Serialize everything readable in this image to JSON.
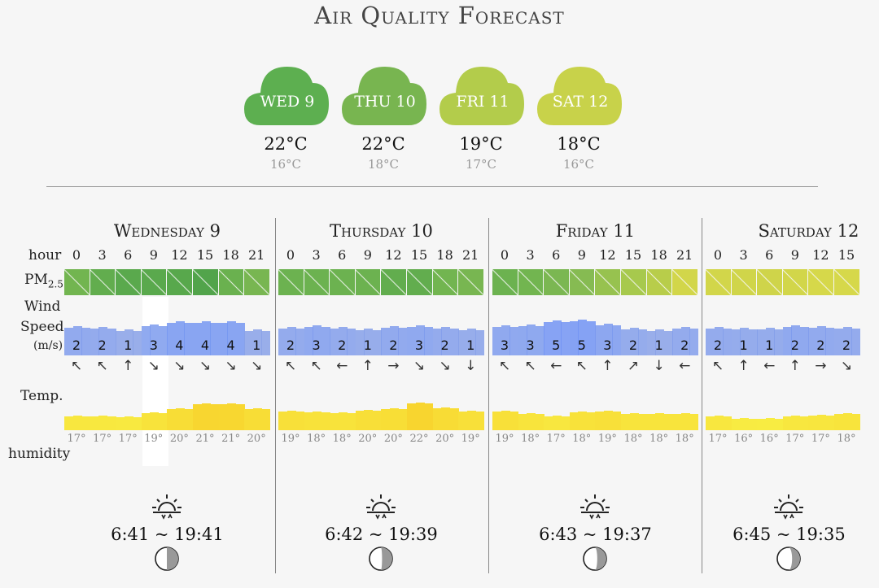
{
  "title": "Air Quality Forecast",
  "summary": [
    {
      "label": "WED 9",
      "max": "22°C",
      "min": "16°C",
      "color": "#5daf50"
    },
    {
      "label": "THU 10",
      "max": "22°C",
      "min": "18°C",
      "color": "#78b550"
    },
    {
      "label": "FRI 11",
      "max": "19°C",
      "min": "17°C",
      "color": "#b3cc4b"
    },
    {
      "label": "SAT 12",
      "max": "18°C",
      "min": "16°C",
      "color": "#c8d24a"
    }
  ],
  "row_labels": {
    "hour": "hour",
    "pm": "PM",
    "pm_sub": "2.5",
    "wind1": "Wind",
    "wind2": "Speed",
    "wind_unit": "(m/s)",
    "temp": "Temp.",
    "humidity": "humidity"
  },
  "days": [
    {
      "name": "Wednesday 9",
      "hours": [
        "0",
        "3",
        "6",
        "9",
        "12",
        "15",
        "18",
        "21"
      ],
      "pm_colors": [
        "#72b550",
        "#62ad4e",
        "#5aa94d",
        "#5aa94d",
        "#58a84c",
        "#52a44b",
        "#6ab14f",
        "#78b651"
      ],
      "wind_values": [
        "2",
        "2",
        "1",
        "3",
        "4",
        "4",
        "4",
        "1"
      ],
      "wind_dirs": [
        "↖",
        "↖",
        "↑",
        "↘",
        "↘",
        "↘",
        "↘",
        "↘"
      ],
      "wind_speed_levels": [
        0.55,
        0.5,
        0.35,
        0.62,
        0.8,
        0.82,
        0.8,
        0.35
      ],
      "temp_labels": [
        "17°",
        "17°",
        "17°",
        "19°",
        "20°",
        "21°",
        "21°",
        "20°"
      ],
      "temp_levels": [
        0.25,
        0.22,
        0.2,
        0.38,
        0.55,
        0.75,
        0.72,
        0.55
      ],
      "sunrise_sunset": "6:41 ~ 19:41",
      "moon_phase": 0.5
    },
    {
      "name": "Thursday 10",
      "hours": [
        "0",
        "3",
        "6",
        "9",
        "12",
        "15",
        "18",
        "21"
      ],
      "pm_colors": [
        "#6cb250",
        "#6cb250",
        "#6cb250",
        "#6cb250",
        "#62ad4e",
        "#62ad4e",
        "#72b550",
        "#78b651"
      ],
      "wind_values": [
        "2",
        "3",
        "2",
        "1",
        "2",
        "3",
        "2",
        "1"
      ],
      "wind_dirs": [
        "↖",
        "↖",
        "←",
        "↑",
        "→",
        "↘",
        "↘",
        "↓"
      ],
      "wind_speed_levels": [
        0.5,
        0.6,
        0.5,
        0.4,
        0.55,
        0.6,
        0.5,
        0.4
      ],
      "temp_labels": [
        "19°",
        "18°",
        "18°",
        "20°",
        "20°",
        "22°",
        "20°",
        "19°"
      ],
      "temp_levels": [
        0.45,
        0.4,
        0.38,
        0.48,
        0.52,
        0.78,
        0.58,
        0.45
      ],
      "sunrise_sunset": "6:42 ~ 19:39",
      "moon_phase": 0.55
    },
    {
      "name": "Friday 11",
      "hours": [
        "0",
        "3",
        "6",
        "9",
        "12",
        "15",
        "18",
        "21"
      ],
      "pm_colors": [
        "#6cb250",
        "#72b550",
        "#7bb752",
        "#86bb52",
        "#97c24f",
        "#a7c94d",
        "#b8cd4a",
        "#d2d64a"
      ],
      "wind_values": [
        "3",
        "3",
        "5",
        "5",
        "3",
        "2",
        "1",
        "2"
      ],
      "wind_dirs": [
        "↖",
        "↖",
        "←",
        "↖",
        "↑",
        "↗",
        "↓",
        "←"
      ],
      "wind_speed_levels": [
        0.6,
        0.62,
        0.88,
        0.92,
        0.7,
        0.45,
        0.35,
        0.5
      ],
      "temp_labels": [
        "19°",
        "18°",
        "17°",
        "18°",
        "19°",
        "18°",
        "18°",
        "18°"
      ],
      "temp_levels": [
        0.45,
        0.35,
        0.25,
        0.4,
        0.45,
        0.35,
        0.33,
        0.35
      ],
      "sunrise_sunset": "6:43 ~ 19:37",
      "moon_phase": 0.6
    },
    {
      "name": "Saturday 12",
      "hours": [
        "0",
        "3",
        "6",
        "9",
        "12",
        "15"
      ],
      "pm_colors": [
        "#d2d64a",
        "#d0d54a",
        "#cfd44a",
        "#d2d64a",
        "#d6d84a",
        "#d6d84a"
      ],
      "wind_values": [
        "2",
        "1",
        "1",
        "2",
        "2",
        "2"
      ],
      "wind_dirs": [
        "↖",
        "↑",
        "←",
        "↑",
        "→",
        "↘"
      ],
      "wind_speed_levels": [
        0.5,
        0.45,
        0.45,
        0.6,
        0.55,
        0.5
      ],
      "temp_labels": [
        "17°",
        "16°",
        "16°",
        "17°",
        "17°",
        "18°"
      ],
      "temp_levels": [
        0.25,
        0.15,
        0.12,
        0.25,
        0.28,
        0.35
      ],
      "sunrise_sunset": "6:45 ~ 19:35",
      "moon_phase": 0.65
    }
  ]
}
